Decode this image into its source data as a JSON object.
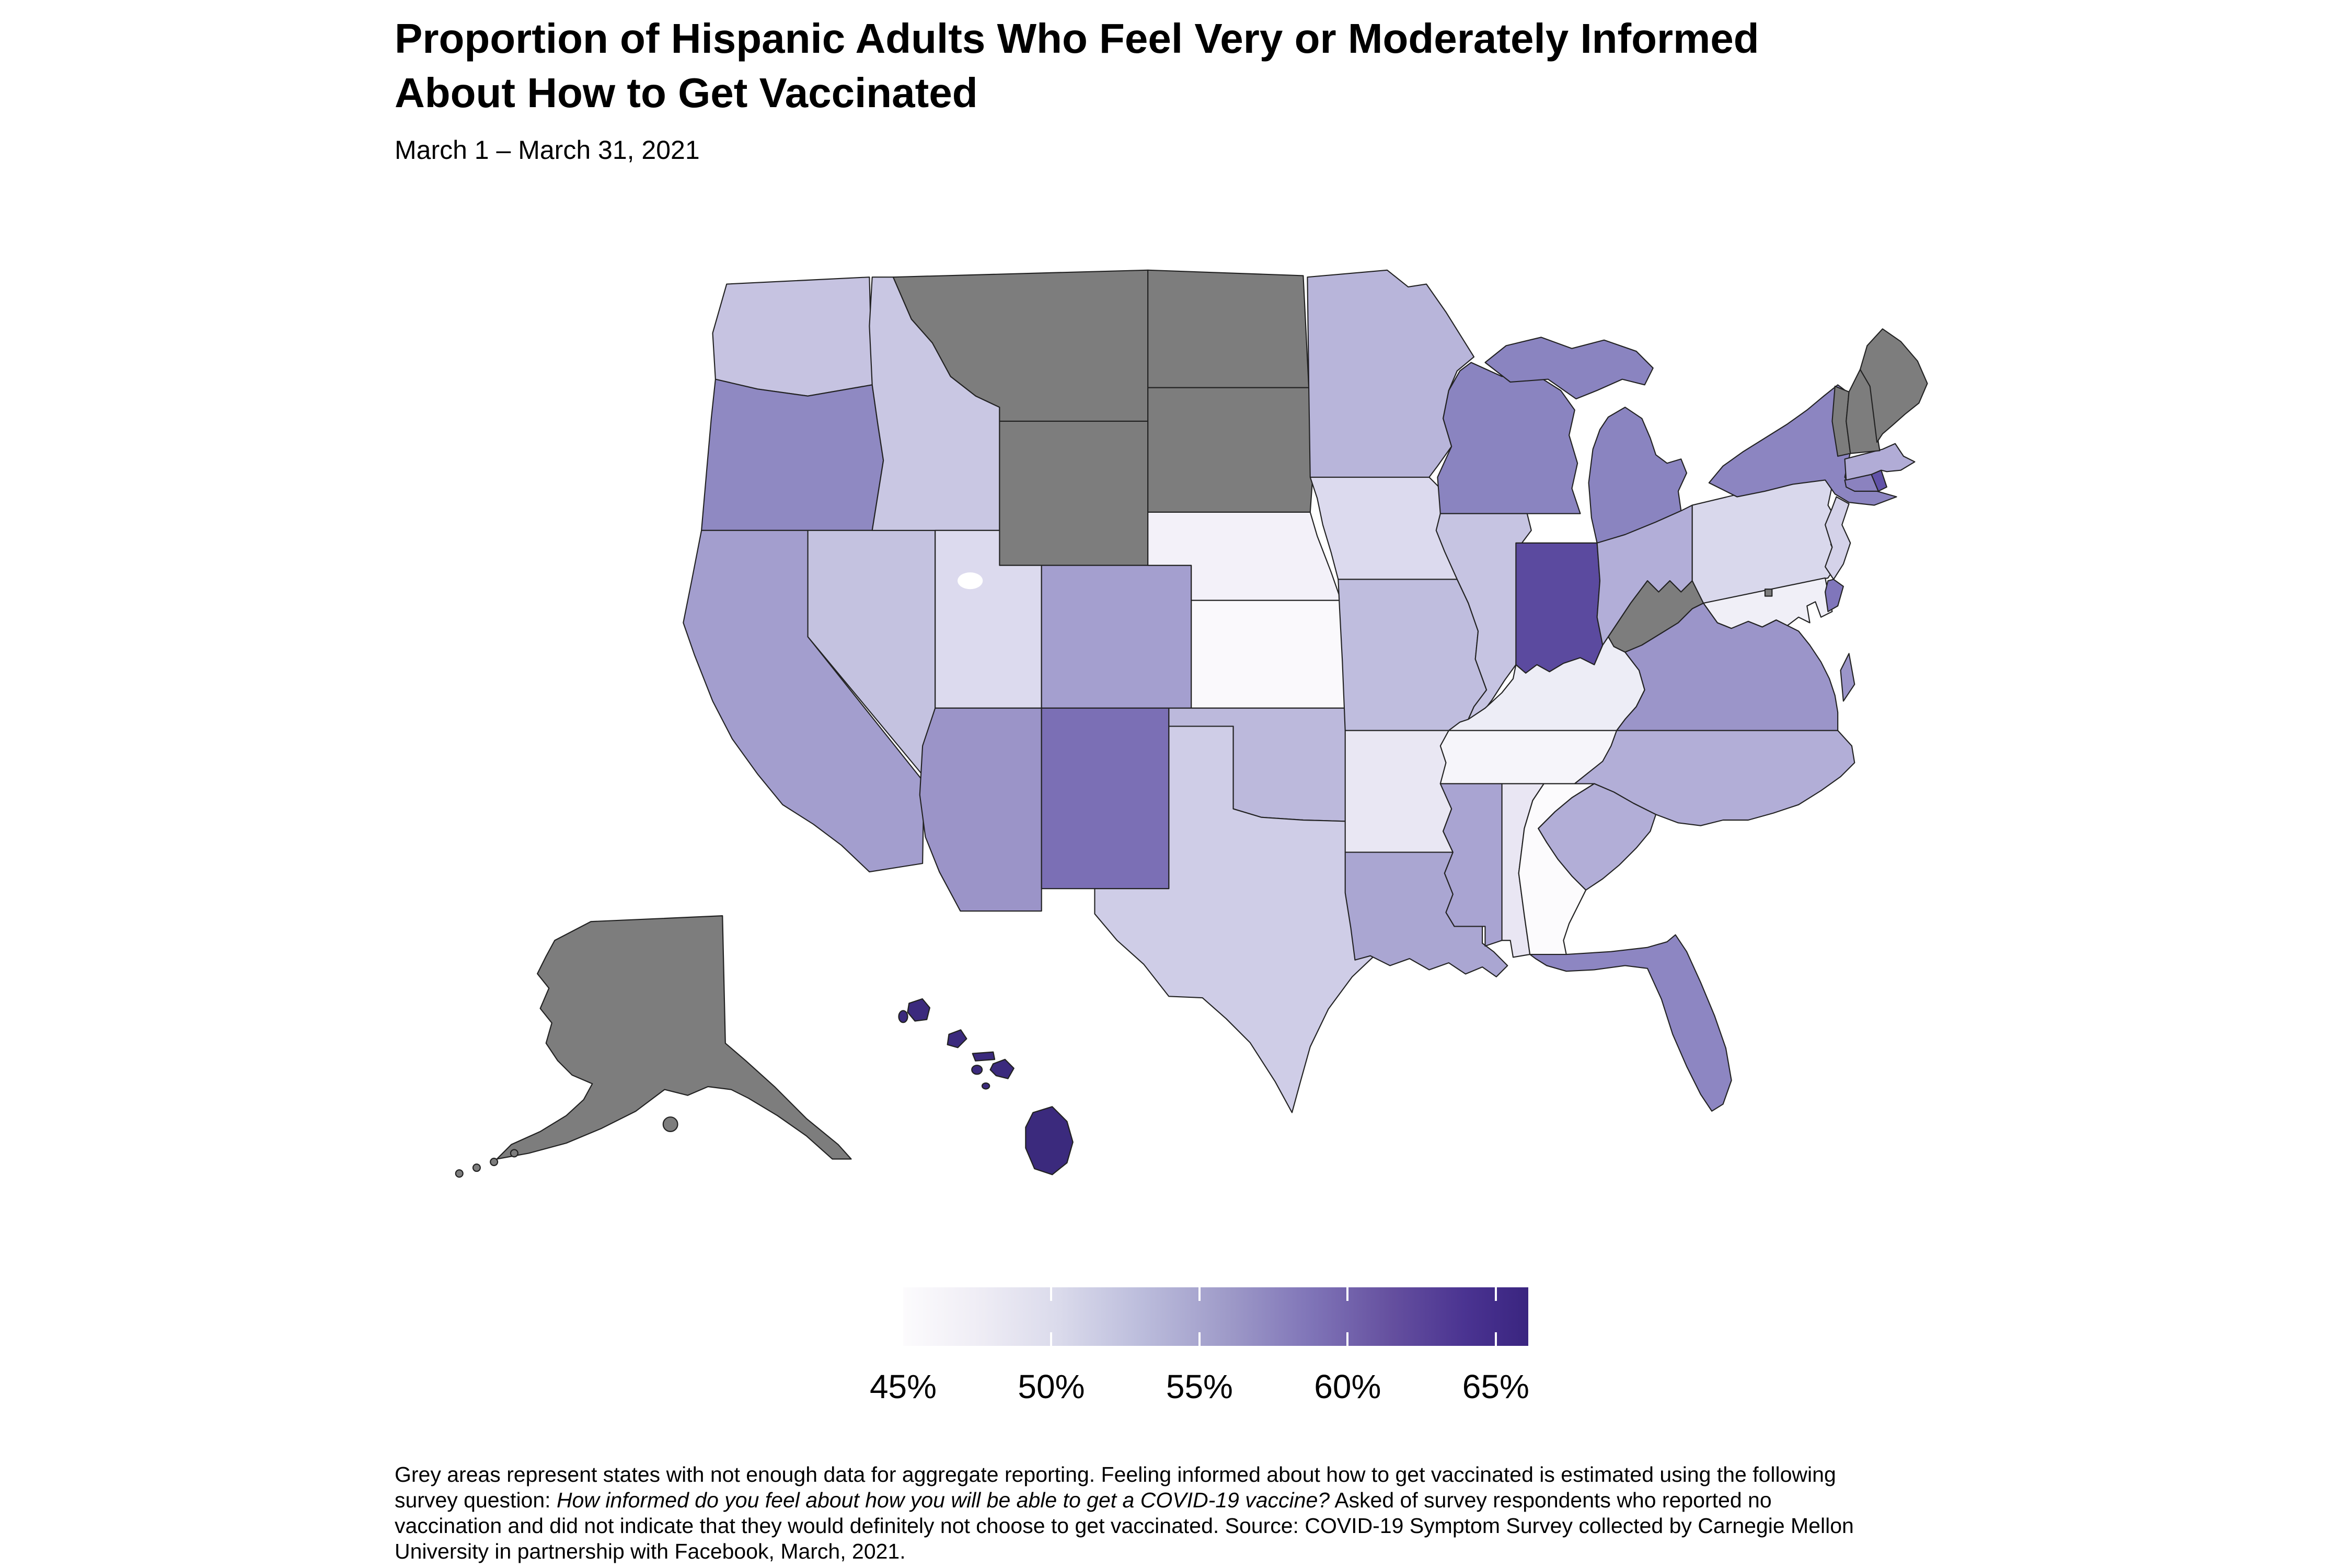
{
  "title": {
    "line1": "Proportion of Hispanic Adults Who Feel Very or Moderately Informed",
    "line2": "About How to Get Vaccinated"
  },
  "subtitle": "March 1 – March 31, 2021",
  "legend": {
    "tick_labels": [
      "45%",
      "50%",
      "55%",
      "60%",
      "65%"
    ],
    "tick_positions_pct": [
      0,
      23.7,
      47.4,
      71.1,
      94.8
    ],
    "gradient_stops": [
      {
        "pct": 0,
        "color": "#fcfbfd"
      },
      {
        "pct": 12,
        "color": "#efedf5"
      },
      {
        "pct": 25,
        "color": "#dadaeb"
      },
      {
        "pct": 38,
        "color": "#bcbddc"
      },
      {
        "pct": 52,
        "color": "#9e9ac8"
      },
      {
        "pct": 65,
        "color": "#8075b8"
      },
      {
        "pct": 78,
        "color": "#65509f"
      },
      {
        "pct": 90,
        "color": "#4a3391"
      },
      {
        "pct": 100,
        "color": "#3a2580"
      }
    ]
  },
  "footnote": {
    "lines": [
      {
        "segments": [
          {
            "text": "Grey areas represent states with not enough data for aggregate reporting. Feeling informed about how to get vaccinated is estimated using the following",
            "italic": false
          }
        ]
      },
      {
        "segments": [
          {
            "text": "survey question: ",
            "italic": false
          },
          {
            "text": "How informed do you feel about how you will be able to get a COVID-19 vaccine?",
            "italic": true
          },
          {
            "text": " Asked of survey respondents who reported no",
            "italic": false
          }
        ]
      },
      {
        "segments": [
          {
            "text": "vaccination and did not indicate that they would definitely not choose to get vaccinated. Source: COVID-19 Symptom Survey collected by Carnegie Mellon",
            "italic": false
          }
        ]
      },
      {
        "segments": [
          {
            "text": "University in partnership with Facebook, March, 2021.",
            "italic": false
          }
        ]
      }
    ]
  },
  "chart_data": {
    "type": "choropleth_map",
    "title": "Proportion of Hispanic Adults Who Feel Very or Moderately Informed About How to Get Vaccinated",
    "date_range": "March 1 – March 31, 2021",
    "unit": "percent",
    "scale_range": [
      45,
      65
    ],
    "colormap": "white-to-dark-purple",
    "no_data_color": "#7d7d7d",
    "no_data_states": [
      "AK",
      "MT",
      "WY",
      "ND",
      "SD",
      "WV",
      "VT",
      "NH",
      "ME",
      "DC"
    ],
    "states": [
      {
        "abbr": "AL",
        "name": "Alabama",
        "value_pct_estimated": 48,
        "color": "#e9e6f3"
      },
      {
        "abbr": "AZ",
        "name": "Arizona",
        "value_pct_estimated": 56,
        "color": "#9b94c8"
      },
      {
        "abbr": "AR",
        "name": "Arkansas",
        "value_pct_estimated": 48,
        "color": "#e9e7f3"
      },
      {
        "abbr": "CA",
        "name": "California",
        "value_pct_estimated": 55,
        "color": "#a39ece"
      },
      {
        "abbr": "CO",
        "name": "Colorado",
        "value_pct_estimated": 55,
        "color": "#a49fcf"
      },
      {
        "abbr": "CT",
        "name": "Connecticut",
        "value_pct_estimated": 58,
        "color": "#8b82bf"
      },
      {
        "abbr": "DE",
        "name": "Delaware",
        "value_pct_estimated": 59,
        "color": "#8076bb"
      },
      {
        "abbr": "FL",
        "name": "Florida",
        "value_pct_estimated": 57,
        "color": "#8d86c2"
      },
      {
        "abbr": "GA",
        "name": "Georgia",
        "value_pct_estimated": 44,
        "color": "#fcfbfd"
      },
      {
        "abbr": "HI",
        "name": "Hawaii",
        "value_pct_estimated": 66,
        "color": "#3b2a7d"
      },
      {
        "abbr": "ID",
        "name": "Idaho",
        "value_pct_estimated": 52,
        "color": "#c9c7e3"
      },
      {
        "abbr": "IL",
        "name": "Illinois",
        "value_pct_estimated": 52,
        "color": "#c6c4e2"
      },
      {
        "abbr": "IN",
        "name": "Indiana",
        "value_pct_estimated": 62,
        "color": "#5b4a9f"
      },
      {
        "abbr": "IA",
        "name": "Iowa",
        "value_pct_estimated": 50,
        "color": "#dcdaee"
      },
      {
        "abbr": "KS",
        "name": "Kansas",
        "value_pct_estimated": 45,
        "color": "#faf9fc"
      },
      {
        "abbr": "KY",
        "name": "Kentucky",
        "value_pct_estimated": 47,
        "color": "#ededf6"
      },
      {
        "abbr": "LA",
        "name": "Louisiana",
        "value_pct_estimated": 55,
        "color": "#aaa6d2"
      },
      {
        "abbr": "MA",
        "name": "Massachusetts",
        "value_pct_estimated": 54,
        "color": "#b1acd6"
      },
      {
        "abbr": "MD",
        "name": "Maryland",
        "value_pct_estimated": 47,
        "color": "#f0eff7"
      },
      {
        "abbr": "MI",
        "name": "Michigan",
        "value_pct_estimated": 58,
        "color": "#8a84c0"
      },
      {
        "abbr": "MN",
        "name": "Minnesota",
        "value_pct_estimated": 53,
        "color": "#b8b5da"
      },
      {
        "abbr": "MS",
        "name": "Mississippi",
        "value_pct_estimated": 55,
        "color": "#a9a4d2"
      },
      {
        "abbr": "MO",
        "name": "Missouri",
        "value_pct_estimated": 53,
        "color": "#bfbdde"
      },
      {
        "abbr": "NE",
        "name": "Nebraska",
        "value_pct_estimated": 46,
        "color": "#f3f1f9"
      },
      {
        "abbr": "NV",
        "name": "Nevada",
        "value_pct_estimated": 52,
        "color": "#c4c2e0"
      },
      {
        "abbr": "NJ",
        "name": "New Jersey",
        "value_pct_estimated": 51,
        "color": "#d4d2e9"
      },
      {
        "abbr": "NM",
        "name": "New Mexico",
        "value_pct_estimated": 59,
        "color": "#7b6fb5"
      },
      {
        "abbr": "NY",
        "name": "New York",
        "value_pct_estimated": 57,
        "color": "#8c85c1"
      },
      {
        "abbr": "NC",
        "name": "North Carolina",
        "value_pct_estimated": 54,
        "color": "#b2aed7"
      },
      {
        "abbr": "OH",
        "name": "Ohio",
        "value_pct_estimated": 54,
        "color": "#b2aed8"
      },
      {
        "abbr": "OK",
        "name": "Oklahoma",
        "value_pct_estimated": 53,
        "color": "#bcb9dc"
      },
      {
        "abbr": "OR",
        "name": "Oregon",
        "value_pct_estimated": 57,
        "color": "#8f89c2"
      },
      {
        "abbr": "PA",
        "name": "Pennsylvania",
        "value_pct_estimated": 50,
        "color": "#d9d8ec"
      },
      {
        "abbr": "RI",
        "name": "Rhode Island",
        "value_pct_estimated": 61,
        "color": "#6152a8"
      },
      {
        "abbr": "SC",
        "name": "South Carolina",
        "value_pct_estimated": 54,
        "color": "#b2aed7"
      },
      {
        "abbr": "TN",
        "name": "Tennessee",
        "value_pct_estimated": 46,
        "color": "#f6f5fa"
      },
      {
        "abbr": "TX",
        "name": "Texas",
        "value_pct_estimated": 51,
        "color": "#cfcde7"
      },
      {
        "abbr": "UT",
        "name": "Utah",
        "value_pct_estimated": 50,
        "color": "#dcdaee"
      },
      {
        "abbr": "VA",
        "name": "Virginia",
        "value_pct_estimated": 56,
        "color": "#9b95c9"
      },
      {
        "abbr": "WA",
        "name": "Washington",
        "value_pct_estimated": 52,
        "color": "#c6c3e1"
      },
      {
        "abbr": "WI",
        "name": "Wisconsin",
        "value_pct_estimated": 58,
        "color": "#8a84c0"
      }
    ]
  }
}
